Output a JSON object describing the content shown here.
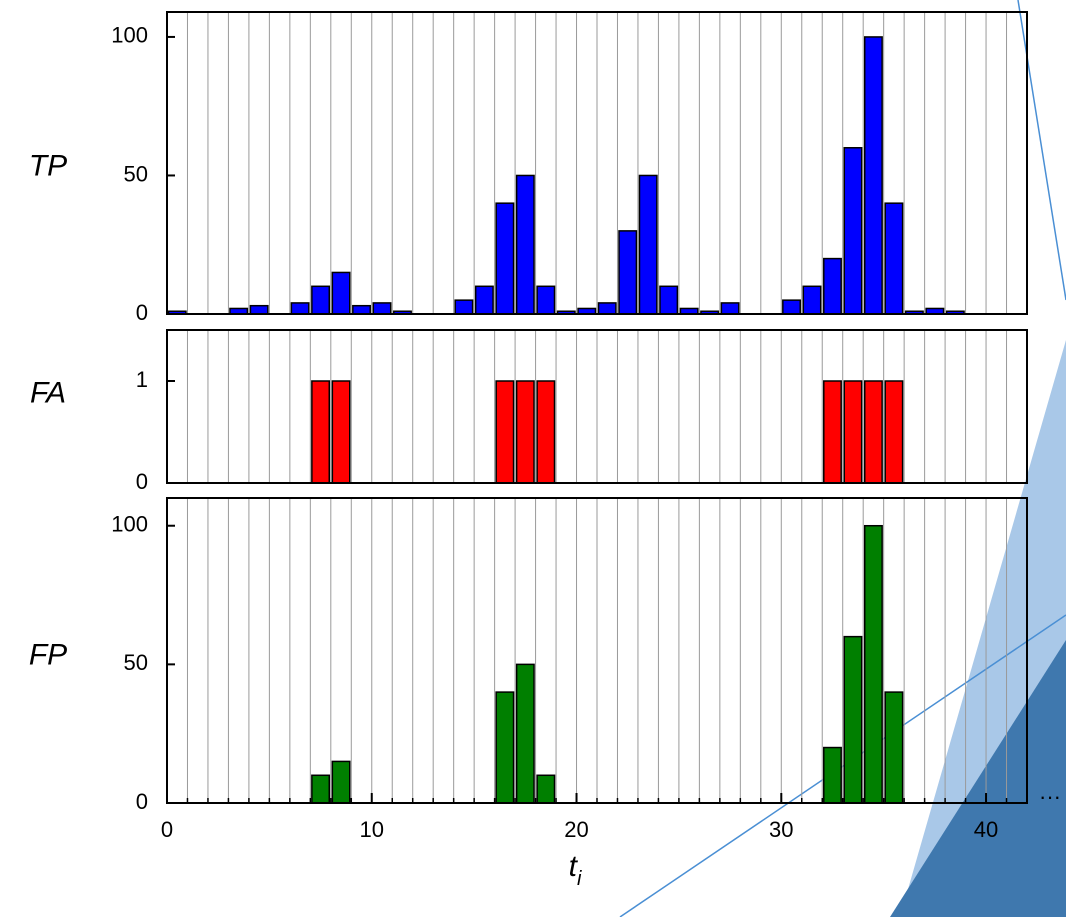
{
  "chart_data": [
    {
      "type": "bar",
      "y_label": "TP",
      "color": "#0000ff",
      "edge_color": "#000000",
      "x": [
        0.5,
        3.5,
        4.5,
        6.5,
        7.5,
        8.5,
        9.5,
        10.5,
        11.5,
        14.5,
        15.5,
        16.5,
        17.5,
        18.5,
        19.5,
        20.5,
        21.5,
        22.5,
        23.5,
        24.5,
        25.5,
        26.5,
        27.5,
        30.5,
        31.5,
        32.5,
        33.5,
        34.5,
        35.5,
        36.5,
        37.5,
        38.5
      ],
      "values": [
        1,
        2,
        3,
        4,
        10,
        15,
        3,
        4,
        1,
        5,
        10,
        40,
        50,
        10,
        1,
        2,
        4,
        30,
        50,
        10,
        2,
        1,
        4,
        5,
        10,
        20,
        60,
        100,
        40,
        1,
        2,
        1
      ],
      "xlim": [
        0,
        42
      ],
      "ylim": [
        0,
        109
      ],
      "yticks": [
        0,
        50,
        100
      ],
      "grid": true
    },
    {
      "type": "bar",
      "y_label": "FA",
      "color": "#ff0000",
      "edge_color": "#000000",
      "x": [
        7.5,
        8.5,
        16.5,
        17.5,
        18.5,
        32.5,
        33.5,
        34.5,
        35.5
      ],
      "values": [
        1,
        1,
        1,
        1,
        1,
        1,
        1,
        1,
        1
      ],
      "xlim": [
        0,
        42
      ],
      "ylim": [
        0,
        1.5
      ],
      "yticks": [
        0,
        1
      ],
      "grid": true
    },
    {
      "type": "bar",
      "y_label": "FP",
      "color": "#007f00",
      "edge_color": "#000000",
      "x": [
        7.5,
        8.5,
        16.5,
        17.5,
        18.5,
        32.5,
        33.5,
        34.5,
        35.5
      ],
      "values": [
        10,
        15,
        40,
        50,
        10,
        20,
        60,
        100,
        40
      ],
      "xlim": [
        0,
        42
      ],
      "ylim": [
        0,
        110
      ],
      "yticks": [
        0,
        50,
        100
      ],
      "xticks": [
        0,
        10,
        20,
        30,
        40
      ],
      "x_label": "t",
      "x_label_subscript": "i",
      "grid": true
    }
  ]
}
